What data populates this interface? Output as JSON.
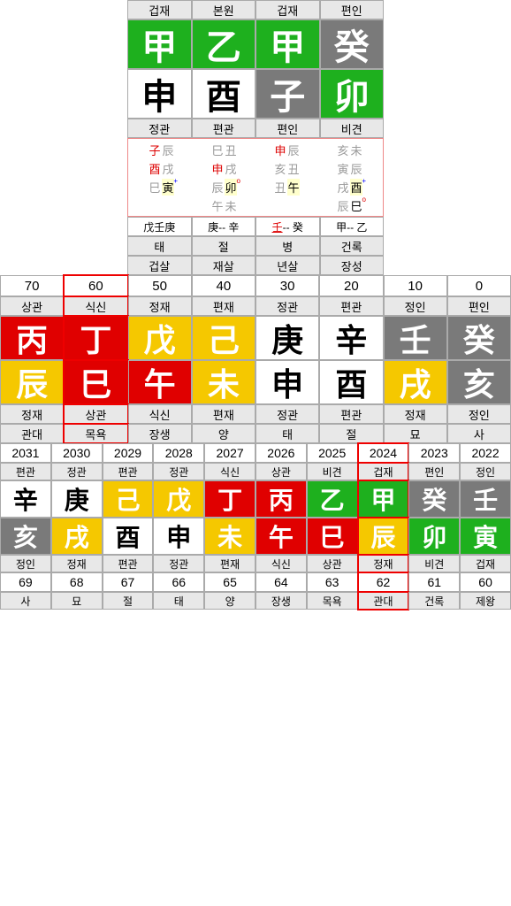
{
  "panel1": {
    "headers": [
      "겁재",
      "본원",
      "겁재",
      "편인"
    ],
    "gan": [
      {
        "ch": "甲",
        "bg": "#1eb01e",
        "fg": "#fff"
      },
      {
        "ch": "乙",
        "bg": "#1eb01e",
        "fg": "#fff"
      },
      {
        "ch": "甲",
        "bg": "#1eb01e",
        "fg": "#fff"
      },
      {
        "ch": "癸",
        "bg": "#7a7a7a",
        "fg": "#fff"
      }
    ],
    "ji": [
      {
        "ch": "申",
        "bg": "#fff",
        "fg": "#000"
      },
      {
        "ch": "酉",
        "bg": "#fff",
        "fg": "#000"
      },
      {
        "ch": "子",
        "bg": "#7a7a7a",
        "fg": "#fff"
      },
      {
        "ch": "卯",
        "bg": "#1eb01e",
        "fg": "#fff"
      }
    ],
    "subheaders": [
      "정관",
      "편관",
      "편인",
      "비견"
    ],
    "mini": [
      [
        {
          "a": "子",
          "ac": "#d00",
          "b": "辰",
          "bc": "#999"
        },
        {
          "a": "酉",
          "ac": "#d00",
          "b": "戌",
          "bc": "#999"
        },
        {
          "a": "巳",
          "ac": "#999",
          "b": "寅",
          "bc": "#000",
          "m": "y",
          "sup": "+",
          "supc": "#00f"
        }
      ],
      [
        {
          "a": "巳",
          "ac": "#999",
          "b": "丑",
          "bc": "#999"
        },
        {
          "a": "申",
          "ac": "#d00",
          "b": "戌",
          "bc": "#999"
        },
        {
          "a": "辰",
          "ac": "#999",
          "b": "卯",
          "bc": "#000",
          "m": "y",
          "sup": "o",
          "supc": "#d00"
        },
        {
          "a": "午",
          "ac": "#999",
          "b": "未",
          "bc": "#999"
        }
      ],
      [
        {
          "a": "申",
          "ac": "#d00",
          "b": "辰",
          "bc": "#999"
        },
        {
          "a": "亥",
          "ac": "#999",
          "b": "丑",
          "bc": "#999"
        },
        {
          "a": "丑",
          "ac": "#999",
          "b": "午",
          "bc": "#000",
          "m": "y"
        }
      ],
      [
        {
          "a": "亥",
          "ac": "#999",
          "b": "未",
          "bc": "#999"
        },
        {
          "a": "寅",
          "ac": "#999",
          "b": "辰",
          "bc": "#999"
        },
        {
          "a": "戌",
          "ac": "#999",
          "b": "酉",
          "bc": "#000",
          "m": "y",
          "sup": "+",
          "supc": "#00f"
        },
        {
          "a": "辰",
          "ac": "#999",
          "b": "巳",
          "bc": "#000",
          "sup": "o",
          "supc": "#d00"
        }
      ]
    ],
    "triples": [
      "戊壬庚",
      "庚-- 辛",
      "壬-- 癸",
      "甲-- 乙"
    ],
    "bottom1": [
      "태",
      "절",
      "병",
      "건록"
    ],
    "bottom2": [
      "겁살",
      "재살",
      "년살",
      "장성"
    ]
  },
  "panel2": {
    "ages": [
      "70",
      "60",
      "50",
      "40",
      "30",
      "20",
      "10",
      "0"
    ],
    "labels1": [
      "상관",
      "식신",
      "정재",
      "편재",
      "정관",
      "편관",
      "정인",
      "편인"
    ],
    "gan": [
      {
        "ch": "丙",
        "bg": "#e00000",
        "fg": "#fff"
      },
      {
        "ch": "丁",
        "bg": "#e00000",
        "fg": "#fff"
      },
      {
        "ch": "戊",
        "bg": "#f5c800",
        "fg": "#fff"
      },
      {
        "ch": "己",
        "bg": "#f5c800",
        "fg": "#fff"
      },
      {
        "ch": "庚",
        "bg": "#fff",
        "fg": "#000"
      },
      {
        "ch": "辛",
        "bg": "#fff",
        "fg": "#000"
      },
      {
        "ch": "壬",
        "bg": "#7a7a7a",
        "fg": "#fff"
      },
      {
        "ch": "癸",
        "bg": "#7a7a7a",
        "fg": "#fff"
      }
    ],
    "ji": [
      {
        "ch": "辰",
        "bg": "#f5c800",
        "fg": "#fff"
      },
      {
        "ch": "巳",
        "bg": "#e00000",
        "fg": "#fff"
      },
      {
        "ch": "午",
        "bg": "#e00000",
        "fg": "#fff"
      },
      {
        "ch": "未",
        "bg": "#f5c800",
        "fg": "#fff"
      },
      {
        "ch": "申",
        "bg": "#fff",
        "fg": "#000"
      },
      {
        "ch": "酉",
        "bg": "#fff",
        "fg": "#000"
      },
      {
        "ch": "戌",
        "bg": "#f5c800",
        "fg": "#fff"
      },
      {
        "ch": "亥",
        "bg": "#7a7a7a",
        "fg": "#fff"
      }
    ],
    "labels2": [
      "정재",
      "상관",
      "식신",
      "편재",
      "정관",
      "편관",
      "정재",
      "정인"
    ],
    "labels3": [
      "관대",
      "목욕",
      "장생",
      "양",
      "태",
      "절",
      "묘",
      "사"
    ],
    "highlight": 1
  },
  "panel3": {
    "years": [
      "2031",
      "2030",
      "2029",
      "2028",
      "2027",
      "2026",
      "2025",
      "2024",
      "2023",
      "2022"
    ],
    "labels1": [
      "편관",
      "정관",
      "편관",
      "정관",
      "식신",
      "상관",
      "비견",
      "겁재",
      "편인",
      "정인"
    ],
    "gan": [
      {
        "ch": "辛",
        "bg": "#fff",
        "fg": "#000"
      },
      {
        "ch": "庚",
        "bg": "#fff",
        "fg": "#000"
      },
      {
        "ch": "己",
        "bg": "#f5c800",
        "fg": "#fff"
      },
      {
        "ch": "戊",
        "bg": "#f5c800",
        "fg": "#fff"
      },
      {
        "ch": "丁",
        "bg": "#e00000",
        "fg": "#fff"
      },
      {
        "ch": "丙",
        "bg": "#e00000",
        "fg": "#fff"
      },
      {
        "ch": "乙",
        "bg": "#1eb01e",
        "fg": "#fff"
      },
      {
        "ch": "甲",
        "bg": "#1eb01e",
        "fg": "#fff"
      },
      {
        "ch": "癸",
        "bg": "#7a7a7a",
        "fg": "#fff"
      },
      {
        "ch": "壬",
        "bg": "#7a7a7a",
        "fg": "#fff"
      }
    ],
    "ji": [
      {
        "ch": "亥",
        "bg": "#7a7a7a",
        "fg": "#fff"
      },
      {
        "ch": "戌",
        "bg": "#f5c800",
        "fg": "#fff"
      },
      {
        "ch": "酉",
        "bg": "#fff",
        "fg": "#000"
      },
      {
        "ch": "申",
        "bg": "#fff",
        "fg": "#000"
      },
      {
        "ch": "未",
        "bg": "#f5c800",
        "fg": "#fff"
      },
      {
        "ch": "午",
        "bg": "#e00000",
        "fg": "#fff"
      },
      {
        "ch": "巳",
        "bg": "#e00000",
        "fg": "#fff"
      },
      {
        "ch": "辰",
        "bg": "#f5c800",
        "fg": "#fff"
      },
      {
        "ch": "卯",
        "bg": "#1eb01e",
        "fg": "#fff"
      },
      {
        "ch": "寅",
        "bg": "#1eb01e",
        "fg": "#fff"
      }
    ],
    "labels2": [
      "정인",
      "정재",
      "편관",
      "정관",
      "편재",
      "식신",
      "상관",
      "정재",
      "비견",
      "겁재"
    ],
    "ages2": [
      "69",
      "68",
      "67",
      "66",
      "65",
      "64",
      "63",
      "62",
      "61",
      "60"
    ],
    "labels3": [
      "사",
      "묘",
      "절",
      "태",
      "양",
      "장생",
      "목욕",
      "관대",
      "건록",
      "제왕"
    ],
    "highlight": 7
  }
}
